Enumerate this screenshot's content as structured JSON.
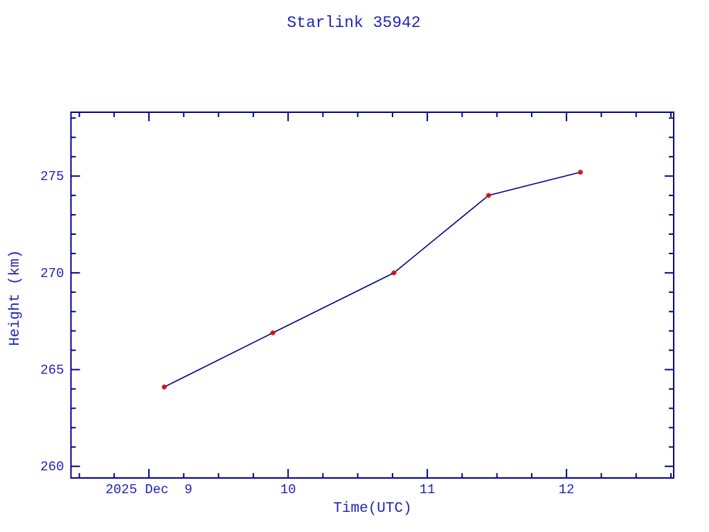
{
  "page": {
    "background_color": "#ffffff"
  },
  "chart_data": {
    "type": "line",
    "title": "Starlink 35942",
    "xlabel": "Time(UTC)",
    "ylabel": "Height (km)",
    "grid": false,
    "legend": null,
    "marker_style": "red-asterisk",
    "x_axis_note": "x values are days of December 2025 (UTC)",
    "xlim": [
      8.44,
      12.77
    ],
    "ylim": [
      259.4,
      278.3
    ],
    "x_major_ticks": [
      {
        "value": 9,
        "label": "2025 Dec  9"
      },
      {
        "value": 10,
        "label": "10"
      },
      {
        "value": 11,
        "label": "11"
      },
      {
        "value": 12,
        "label": "12"
      }
    ],
    "x_minor_step": 0.25,
    "y_major_ticks": [
      {
        "value": 260,
        "label": "260"
      },
      {
        "value": 265,
        "label": "265"
      },
      {
        "value": 270,
        "label": "270"
      },
      {
        "value": 275,
        "label": "275"
      }
    ],
    "y_minor_step": 1,
    "series": [
      {
        "name": "height-km",
        "x": [
          9.11,
          9.89,
          10.76,
          11.44,
          12.1
        ],
        "y": [
          264.1,
          266.9,
          270.0,
          274.0,
          275.2
        ]
      }
    ],
    "colors": {
      "text": "#2222bb",
      "axis": "#00008b",
      "line": "#00008b",
      "marker": "#cc1111"
    }
  }
}
